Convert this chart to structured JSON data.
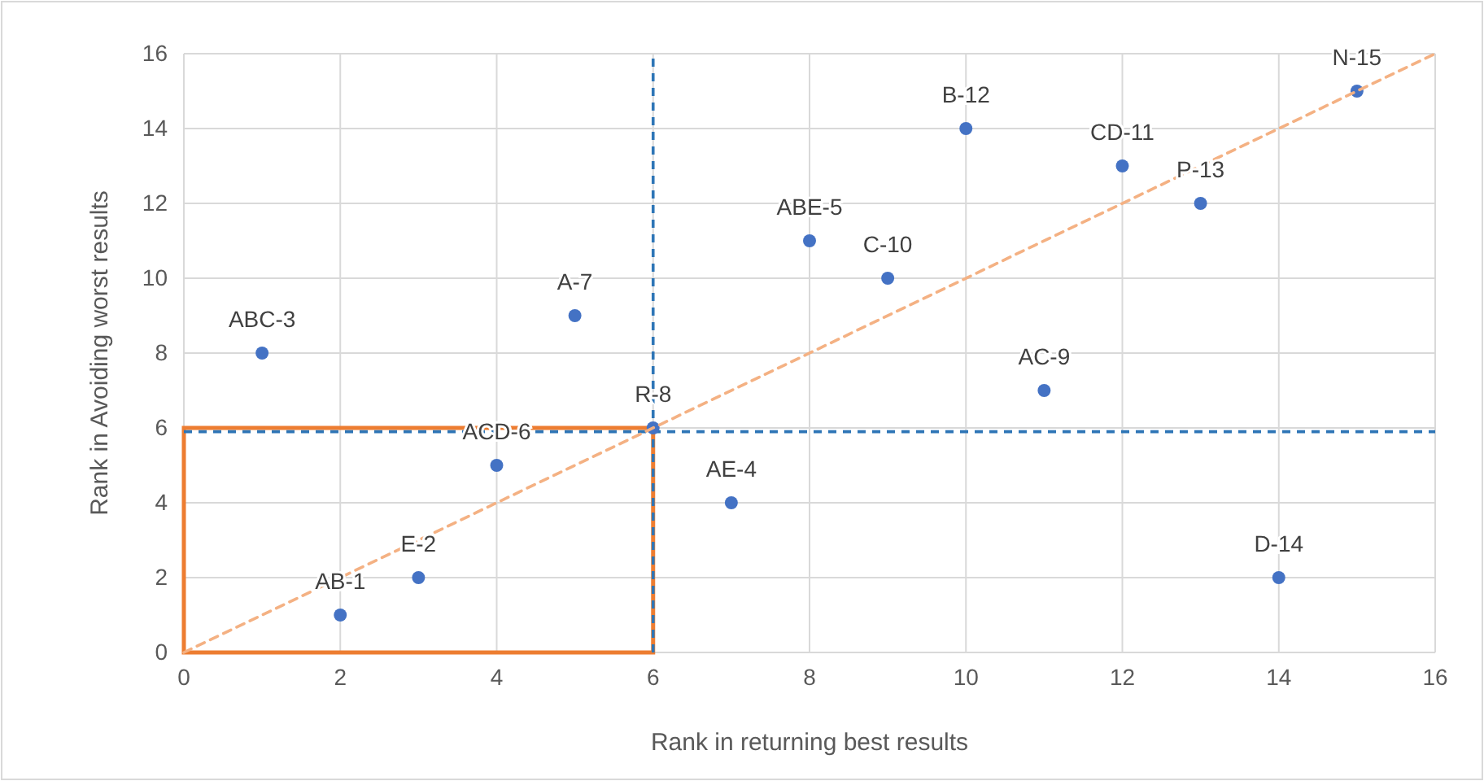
{
  "chart_data": {
    "type": "scatter",
    "xlabel": "Rank in returning best results",
    "ylabel": "Rank in Avoiding worst results",
    "xlim": [
      0,
      16
    ],
    "ylim": [
      0,
      16
    ],
    "xticks": [
      0,
      2,
      4,
      6,
      8,
      10,
      12,
      14,
      16
    ],
    "yticks": [
      0,
      2,
      4,
      6,
      8,
      10,
      12,
      14,
      16
    ],
    "grid": true,
    "marker": "circle",
    "series": [
      {
        "color": "#4472c4",
        "x": [
          2,
          3,
          1,
          7,
          8,
          4,
          5,
          6,
          11,
          9,
          12,
          10,
          13,
          14,
          15
        ],
        "values": [
          1,
          2,
          8,
          4,
          11,
          5,
          9,
          6,
          7,
          10,
          13,
          14,
          12,
          2,
          15
        ]
      },
      {
        "type": "line",
        "color": "#f4b183",
        "line_style": "dashed",
        "marker": "none",
        "x": [
          0,
          16
        ],
        "values": [
          0,
          16
        ]
      }
    ],
    "ref_lines": [
      {
        "axis": "x",
        "value": 6,
        "color": "#2e75b6",
        "line_style": "dashed"
      },
      {
        "axis": "y",
        "value": 5.9,
        "color": "#2e75b6",
        "line_style": "dashed"
      }
    ],
    "annotations": [
      {
        "text": "AB-1",
        "x": 2,
        "y": 1
      },
      {
        "text": "E-2",
        "x": 3,
        "y": 2
      },
      {
        "text": "ABC-3",
        "x": 1,
        "y": 8
      },
      {
        "text": "AE-4",
        "x": 7,
        "y": 4
      },
      {
        "text": "ABE-5",
        "x": 8,
        "y": 11
      },
      {
        "text": "ACD-6",
        "x": 4,
        "y": 5
      },
      {
        "text": "A-7",
        "x": 5,
        "y": 9
      },
      {
        "text": "R-8",
        "x": 6,
        "y": 6
      },
      {
        "text": "AC-9",
        "x": 11,
        "y": 7
      },
      {
        "text": "C-10",
        "x": 9,
        "y": 10
      },
      {
        "text": "CD-11",
        "x": 12,
        "y": 13
      },
      {
        "text": "B-12",
        "x": 10,
        "y": 14
      },
      {
        "text": "P-13",
        "x": 13,
        "y": 12
      },
      {
        "text": "D-14",
        "x": 14,
        "y": 2
      },
      {
        "text": "N-15",
        "x": 15,
        "y": 15
      }
    ]
  }
}
